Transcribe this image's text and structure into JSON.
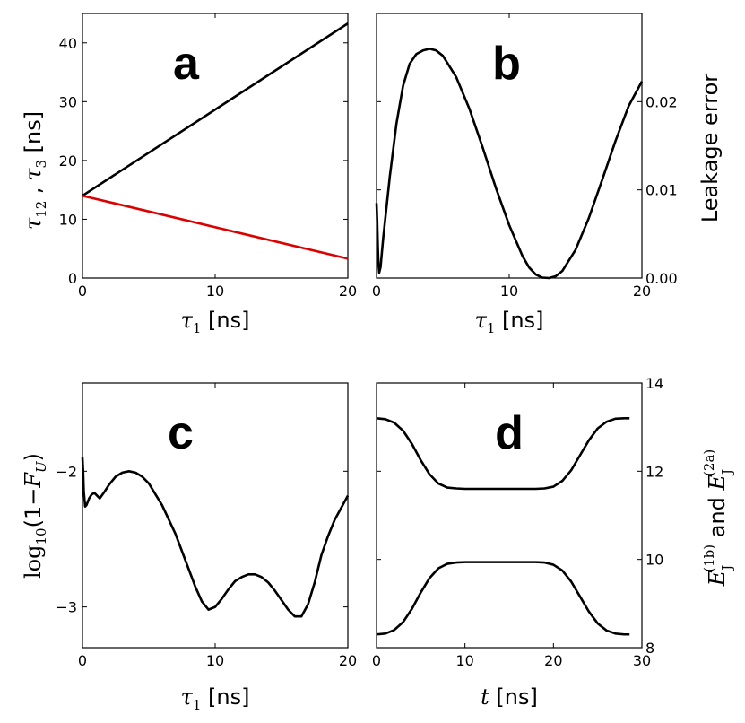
{
  "chart_data": [
    {
      "id": "a",
      "type": "line",
      "panel_label": "a",
      "xlabel": "τ1 [ns]",
      "ylabel": "τ12 , τ3 [ns]",
      "xlim": [
        0,
        20
      ],
      "ylim": [
        0,
        45
      ],
      "xticks": [
        0,
        10,
        20
      ],
      "yticks": [
        0,
        10,
        20,
        30,
        40
      ],
      "series": [
        {
          "color": "#000000",
          "x": [
            0,
            20
          ],
          "y": [
            14,
            43.3
          ]
        },
        {
          "color": "#dd0000",
          "x": [
            0,
            20
          ],
          "y": [
            14,
            3.3
          ]
        }
      ]
    },
    {
      "id": "b",
      "type": "line",
      "panel_label": "b",
      "xlabel": "τ1 [ns]",
      "ylabel": "Leakage error",
      "y_axis_side": "right",
      "xlim": [
        0,
        20
      ],
      "ylim": [
        0,
        0.03
      ],
      "xticks": [
        0,
        10,
        20
      ],
      "yticks": [
        "0.00",
        "0.01",
        "0.02"
      ],
      "series": [
        {
          "color": "#000000",
          "x": [
            0,
            0.05,
            0.1,
            0.15,
            0.2,
            0.3,
            0.5,
            1,
            1.5,
            2,
            2.5,
            3,
            3.5,
            4,
            4.5,
            5,
            6,
            7,
            8,
            9,
            10,
            11,
            11.5,
            12,
            12.5,
            13,
            13.5,
            14,
            15,
            16,
            17,
            18,
            19,
            20
          ],
          "y": [
            0.0085,
            0.0065,
            0.0035,
            0.0015,
            0.0006,
            0.0012,
            0.0045,
            0.0115,
            0.0175,
            0.0218,
            0.0243,
            0.0254,
            0.0258,
            0.026,
            0.0258,
            0.0252,
            0.0228,
            0.0192,
            0.0148,
            0.0102,
            0.006,
            0.0025,
            0.0012,
            0.0004,
            5e-05,
            0.0,
            0.0002,
            0.0008,
            0.0032,
            0.0068,
            0.0111,
            0.0155,
            0.0195,
            0.0223
          ]
        }
      ]
    },
    {
      "id": "c",
      "type": "line",
      "panel_label": "c",
      "xlabel": "τ1 [ns]",
      "ylabel": "log10(1−FU)",
      "xlim": [
        0,
        20
      ],
      "ylim": [
        -3.3,
        -1.35
      ],
      "xticks": [
        0,
        10,
        20
      ],
      "yticks": [
        -3,
        -2
      ],
      "series": [
        {
          "color": "#000000",
          "x": [
            0,
            0.05,
            0.1,
            0.2,
            0.3,
            0.5,
            0.7,
            0.9,
            1.1,
            1.3,
            1.6,
            2,
            2.5,
            3,
            3.5,
            4,
            4.5,
            5,
            6,
            7,
            8,
            8.5,
            9,
            9.5,
            10,
            10.5,
            11,
            11.5,
            12,
            12.5,
            13,
            13.5,
            14,
            14.5,
            15,
            15.5,
            16,
            16.5,
            17,
            17.5,
            18,
            18.5,
            19,
            19.5,
            20
          ],
          "y": [
            -1.9,
            -2.0,
            -2.15,
            -2.26,
            -2.25,
            -2.2,
            -2.17,
            -2.16,
            -2.18,
            -2.2,
            -2.16,
            -2.1,
            -2.04,
            -2.01,
            -2.0,
            -2.01,
            -2.04,
            -2.09,
            -2.25,
            -2.46,
            -2.72,
            -2.85,
            -2.96,
            -3.02,
            -3.0,
            -2.94,
            -2.87,
            -2.81,
            -2.78,
            -2.76,
            -2.76,
            -2.78,
            -2.82,
            -2.88,
            -2.95,
            -3.02,
            -3.07,
            -3.07,
            -2.98,
            -2.82,
            -2.62,
            -2.48,
            -2.36,
            -2.27,
            -2.18
          ]
        }
      ]
    },
    {
      "id": "d",
      "type": "line",
      "panel_label": "d",
      "xlabel": "t [ns]",
      "ylabel": "EJ(1b) and EJ(2a)",
      "y_axis_side": "right",
      "xlim": [
        0,
        30
      ],
      "ylim": [
        8,
        14
      ],
      "xticks": [
        0,
        10,
        20,
        30
      ],
      "yticks": [
        8,
        10,
        12,
        14
      ],
      "series": [
        {
          "color": "#000000",
          "x": [
            0,
            1,
            2,
            3,
            4,
            5,
            6,
            7,
            8,
            9,
            10,
            12,
            14,
            16,
            18,
            19,
            20,
            21,
            22,
            23,
            24,
            25,
            26,
            27,
            28,
            28.6
          ],
          "y": [
            13.2,
            13.18,
            13.1,
            12.92,
            12.62,
            12.25,
            11.93,
            11.72,
            11.63,
            11.61,
            11.6,
            11.6,
            11.6,
            11.6,
            11.6,
            11.61,
            11.65,
            11.78,
            12.02,
            12.36,
            12.7,
            12.97,
            13.12,
            13.19,
            13.2,
            13.2
          ]
        },
        {
          "color": "#000000",
          "x": [
            0,
            1,
            2,
            3,
            4,
            5,
            6,
            7,
            8,
            9,
            10,
            12,
            14,
            16,
            18,
            19,
            20,
            21,
            22,
            23,
            24,
            25,
            26,
            27,
            28,
            28.6
          ],
          "y": [
            8.3,
            8.32,
            8.4,
            8.58,
            8.88,
            9.25,
            9.58,
            9.8,
            9.9,
            9.93,
            9.94,
            9.94,
            9.94,
            9.94,
            9.94,
            9.93,
            9.88,
            9.75,
            9.5,
            9.16,
            8.82,
            8.55,
            8.39,
            8.32,
            8.3,
            8.3
          ]
        }
      ]
    }
  ],
  "labels": {
    "a_ylabel_sym1": "τ",
    "a_ylabel_sub1": "12",
    "a_ylabel_sep": " , ",
    "a_ylabel_sym2": "τ",
    "a_ylabel_sub2": "3",
    "a_ylabel_unit": " [ns]",
    "tau_sym": "τ",
    "tau_sub": "1",
    "ns_unit": " [ns]",
    "b_ylabel": "Leakage error",
    "c_ylabel_log": "log",
    "c_ylabel_logsub": "10",
    "c_ylabel_arg": "(1−",
    "c_ylabel_F": "F",
    "c_ylabel_Fsub": "U",
    "c_ylabel_close": ")",
    "d_xlabel_t": "t",
    "d_ylabel_E": "E",
    "d_ylabel_J": "J",
    "d_ylabel_sup1": "(1b)",
    "d_ylabel_and": " and ",
    "d_ylabel_sup2": "(2a)"
  }
}
